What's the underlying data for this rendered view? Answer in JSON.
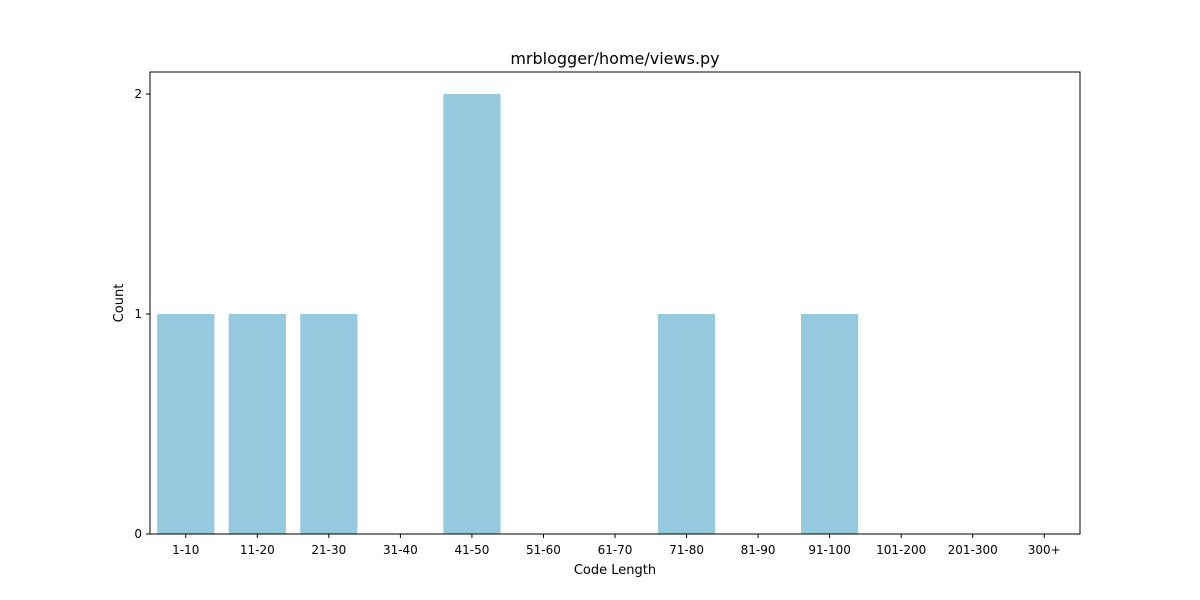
{
  "chart_data": {
    "type": "bar",
    "title": "mrblogger/home/views.py",
    "xlabel": "Code Length",
    "ylabel": "Count",
    "categories": [
      "1-10",
      "11-20",
      "21-30",
      "31-40",
      "41-50",
      "51-60",
      "61-70",
      "71-80",
      "81-90",
      "91-100",
      "101-200",
      "201-300",
      "300+"
    ],
    "values": [
      1,
      1,
      1,
      0,
      2,
      0,
      0,
      1,
      0,
      1,
      0,
      0,
      0
    ],
    "ylim": [
      0,
      2.1
    ],
    "yticks": [
      0,
      1,
      2
    ],
    "grid": false,
    "legend": "none",
    "bar_color": "#96c9de"
  }
}
